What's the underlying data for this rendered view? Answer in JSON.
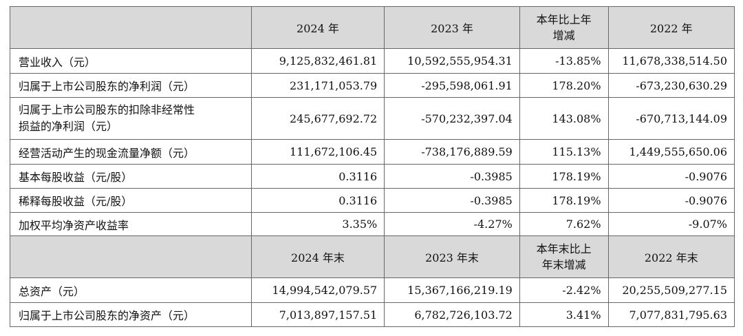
{
  "header1": {
    "col0": "",
    "col1": "2024 年",
    "col2": "2023 年",
    "col3_line1": "本年比上年",
    "col3_line2": "增减",
    "col4": "2022 年"
  },
  "rows1": [
    {
      "label": "营业收入（元）",
      "v2024": "9,125,832,461.81",
      "v2023": "10,592,555,954.31",
      "change": "-13.85%",
      "v2022": "11,678,338,514.50"
    },
    {
      "label": "归属于上市公司股东的净利润（元）",
      "v2024": "231,171,053.79",
      "v2023": "-295,598,061.91",
      "change": "178.20%",
      "v2022": "-673,230,630.29"
    },
    {
      "label_line1": "归属于上市公司股东的扣除非经常性",
      "label_line2": "损益的净利润（元）",
      "v2024": "245,677,692.72",
      "v2023": "-570,232,397.04",
      "change": "143.08%",
      "v2022": "-670,713,144.09"
    },
    {
      "label": "经营活动产生的现金流量净额（元）",
      "v2024": "111,672,106.45",
      "v2023": "-738,176,889.59",
      "change": "115.13%",
      "v2022": "1,449,555,650.06"
    },
    {
      "label": "基本每股收益（元/股）",
      "v2024": "0.3116",
      "v2023": "-0.3985",
      "change": "178.19%",
      "v2022": "-0.9076"
    },
    {
      "label": "稀释每股收益（元/股）",
      "v2024": "0.3116",
      "v2023": "-0.3985",
      "change": "178.19%",
      "v2022": "-0.9076"
    },
    {
      "label": "加权平均净资产收益率",
      "v2024": "3.35%",
      "v2023": "-4.27%",
      "change": "7.62%",
      "v2022": "-9.07%"
    }
  ],
  "header2": {
    "col0": "",
    "col1": "2024 年末",
    "col2": "2023 年末",
    "col3_line1": "本年末比上",
    "col3_line2": "年末增减",
    "col4": "2022 年末"
  },
  "rows2": [
    {
      "label": "总资产（元）",
      "v2024": "14,994,542,079.57",
      "v2023": "15,367,166,219.19",
      "change": "-2.42%",
      "v2022": "20,255,509,277.15"
    },
    {
      "label": "归属于上市公司股东的净资产（元）",
      "v2024": "7,013,897,157.51",
      "v2023": "6,782,726,103.72",
      "change": "3.41%",
      "v2022": "7,077,831,795.63"
    }
  ]
}
